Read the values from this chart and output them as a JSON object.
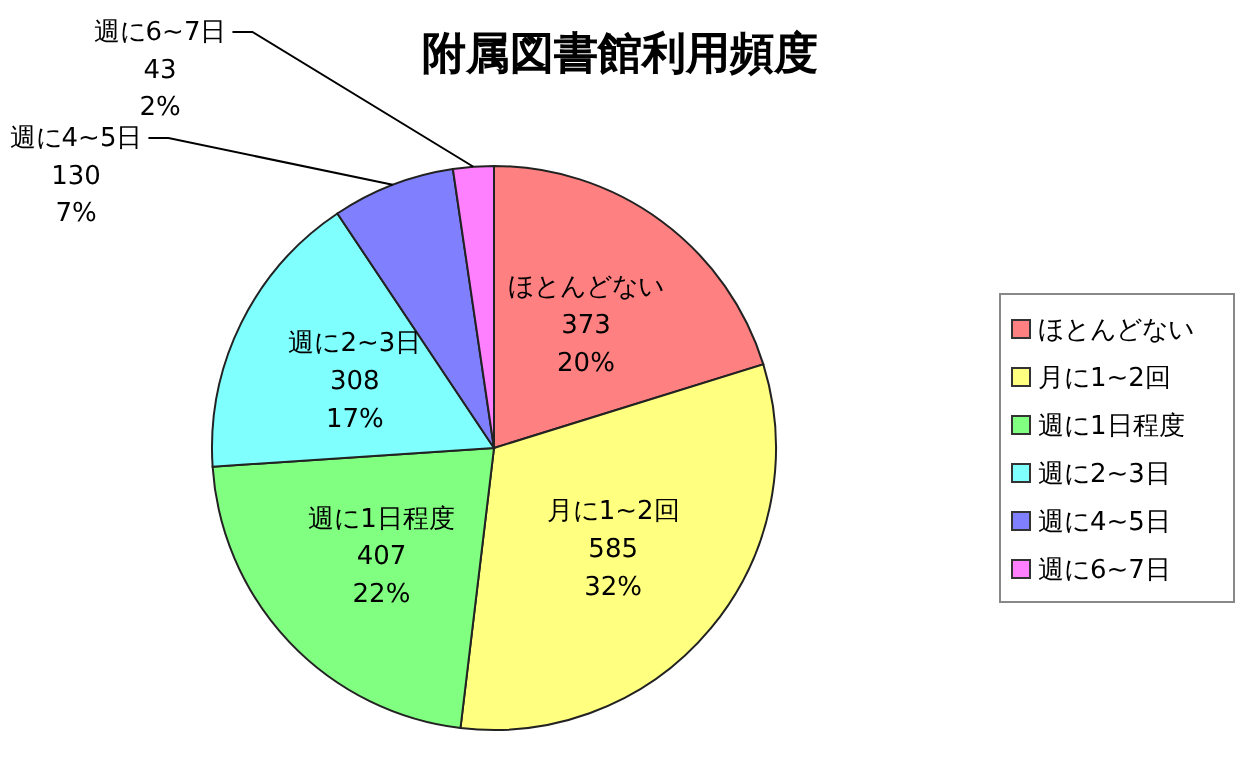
{
  "chart_data": {
    "type": "pie",
    "title": "附属図書館利用頻度",
    "categories": [
      "ほとんどない",
      "月に1~2回",
      "週に1日程度",
      "週に2~3日",
      "週に4~5日",
      "週に6~7日"
    ],
    "values": [
      373,
      585,
      407,
      308,
      130,
      43
    ],
    "colors": [
      "#ff8080",
      "#ffff80",
      "#80ff80",
      "#80ffff",
      "#8080ff",
      "#ff80ff"
    ],
    "value_labels": [
      "ほとんどない\n373\n20%",
      "月に1~2回\n585\n32%",
      "週に1日程度\n407\n22%",
      "週に2~3日\n308\n17%",
      "週に4~5日\n130\n7%",
      "週に6~7日\n43\n2%"
    ],
    "legend": "right"
  }
}
